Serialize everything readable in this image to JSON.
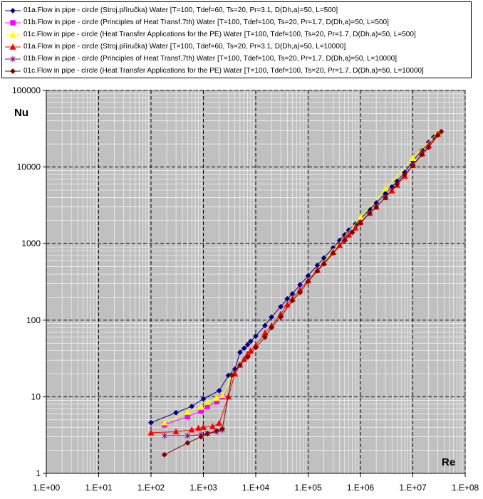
{
  "chart_data": {
    "type": "scatter",
    "title": "",
    "xlabel": "Re",
    "ylabel": "Nu",
    "xscale": "log",
    "yscale": "log",
    "xlim": [
      1,
      100000000
    ],
    "ylim": [
      1,
      100000
    ],
    "x_tick_labels": [
      "1.E+00",
      "1.E+01",
      "1.E+02",
      "1.E+03",
      "1.E+04",
      "1.E+05",
      "1.E+06",
      "1.E+07",
      "1.E+08"
    ],
    "y_tick_labels": [
      "1",
      "10",
      "100",
      "1000",
      "10000",
      "100000"
    ],
    "grid": true,
    "plot_background": "#c0c0c0",
    "legend_position": "top",
    "series": [
      {
        "name": "01a.Flow in pipe - circle (Stroj.příručka) Water  [T=100, Tdef=60, Ts=20, Pr=3.1, D(Dh,a)=50, L=500]",
        "color": "#000080",
        "marker": "diamond",
        "points": [
          [
            100,
            4.6
          ],
          [
            300,
            6.2
          ],
          [
            600,
            7.5
          ],
          [
            1000,
            9.4
          ],
          [
            2000,
            12
          ],
          [
            3000,
            19
          ],
          [
            4000,
            23
          ],
          [
            5000,
            38
          ],
          [
            6000,
            43
          ],
          [
            7000,
            48
          ],
          [
            8000,
            53
          ],
          [
            10000,
            62
          ],
          [
            15000,
            85
          ],
          [
            20000,
            110
          ],
          [
            30000,
            150
          ],
          [
            40000,
            190
          ],
          [
            50000,
            220
          ],
          [
            70000,
            290
          ],
          [
            100000,
            380
          ],
          [
            150000,
            520
          ],
          [
            200000,
            650
          ],
          [
            300000,
            880
          ],
          [
            400000,
            1100
          ],
          [
            500000,
            1300
          ],
          [
            600000,
            1500
          ],
          [
            800000,
            1800
          ],
          [
            1000000,
            2100
          ],
          [
            1500000,
            2800
          ],
          [
            2000000,
            3400
          ],
          [
            3000000,
            4500
          ],
          [
            4000000,
            5500
          ],
          [
            5000000,
            6500
          ],
          [
            7000000,
            8500
          ],
          [
            10000000,
            12000
          ],
          [
            15000000,
            16500
          ],
          [
            20000000,
            21000
          ],
          [
            25000000,
            24500
          ]
        ]
      },
      {
        "name": "01b.Flow in pipe - circle (Principles of Heat Transf.7th) Water  [T=100, Tdef=100, Ts=20, Pr=1.7, D(Dh,a)=50, L=500]",
        "color": "#ff00ff",
        "marker": "square",
        "points": [
          [
            180,
            4.3
          ],
          [
            500,
            5.5
          ],
          [
            900,
            6.5
          ],
          [
            1200,
            7.5
          ],
          [
            1800,
            8.6
          ],
          [
            2300,
            10
          ]
        ]
      },
      {
        "name": "01c.Flow in pipe - circle (Heat Transfer Applications for the PE) Water  [T=100, Tdef=100, Ts=20, Pr=1.7, D(Dh,a)=50, L=500]",
        "color": "#ffff00",
        "marker": "triangle",
        "points": [
          [
            180,
            4.6
          ],
          [
            500,
            6.3
          ],
          [
            900,
            7.3
          ],
          [
            1200,
            8.5
          ],
          [
            1800,
            9.6
          ],
          [
            2300,
            10.5
          ],
          [
            3500,
            19
          ],
          [
            5000,
            26
          ],
          [
            10000,
            47
          ],
          [
            20000,
            85
          ],
          [
            50000,
            190
          ],
          [
            100000,
            330
          ],
          [
            300000,
            800
          ],
          [
            1000000,
            2200
          ],
          [
            3000000,
            5200
          ],
          [
            10000000,
            13000
          ],
          [
            30000000,
            28000
          ]
        ]
      },
      {
        "name": "01a.Flow in pipe - circle (Stroj.příručka) Water  [T=100, Tdef=60, Ts=20, Pr=3.1, D(Dh,a)=50, L=10000]",
        "color": "#ff0000",
        "marker": "triangle",
        "points": [
          [
            100,
            3.4
          ],
          [
            300,
            3.5
          ],
          [
            600,
            3.7
          ],
          [
            800,
            3.9
          ],
          [
            1000,
            4
          ],
          [
            1500,
            4.1
          ],
          [
            2000,
            4.5
          ],
          [
            3000,
            10
          ],
          [
            4000,
            20
          ],
          [
            5000,
            26
          ],
          [
            6000,
            31
          ],
          [
            7000,
            36
          ],
          [
            8000,
            40
          ],
          [
            10000,
            47
          ],
          [
            15000,
            68
          ],
          [
            20000,
            85
          ],
          [
            30000,
            120
          ],
          [
            40000,
            160
          ],
          [
            50000,
            190
          ],
          [
            70000,
            250
          ],
          [
            100000,
            330
          ],
          [
            150000,
            450
          ],
          [
            200000,
            560
          ],
          [
            300000,
            770
          ],
          [
            400000,
            950
          ],
          [
            500000,
            1150
          ],
          [
            600000,
            1300
          ],
          [
            800000,
            1600
          ],
          [
            1000000,
            1900
          ],
          [
            1500000,
            2500
          ],
          [
            2000000,
            3000
          ],
          [
            3000000,
            4000
          ],
          [
            4000000,
            4900
          ],
          [
            5000000,
            5800
          ],
          [
            7000000,
            7600
          ],
          [
            10000000,
            10500
          ],
          [
            15000000,
            15000
          ],
          [
            20000000,
            19000
          ],
          [
            30000000,
            27000
          ]
        ]
      },
      {
        "name": "01b.Flow in pipe - circle (Principles of Heat Transf.7th) Water  [T=100, Tdef=100, Ts=20, Pr=1.7, D(Dh,a)=50, L=10000]",
        "color": "#800080",
        "marker": "star",
        "points": [
          [
            180,
            3.1
          ],
          [
            500,
            3.1
          ],
          [
            900,
            3.2
          ],
          [
            1200,
            3.3
          ],
          [
            1800,
            3.5
          ],
          [
            2300,
            3.7
          ]
        ]
      },
      {
        "name": "01c.Flow in pipe - circle (Heat Transfer Applications for the PE) Water  [T=100, Tdef=100, Ts=20, Pr=1.7, D(Dh,a)=50, L=10000]",
        "color": "#800000",
        "marker": "diamond",
        "points": [
          [
            180,
            1.75
          ],
          [
            500,
            2.5
          ],
          [
            900,
            3
          ],
          [
            1200,
            3.3
          ],
          [
            1800,
            3.6
          ],
          [
            2300,
            3.8
          ],
          [
            3500,
            19
          ],
          [
            5000,
            26
          ],
          [
            7000,
            33
          ],
          [
            10000,
            44
          ],
          [
            15000,
            60
          ],
          [
            20000,
            80
          ],
          [
            30000,
            110
          ],
          [
            50000,
            180
          ],
          [
            70000,
            230
          ],
          [
            100000,
            320
          ],
          [
            150000,
            440
          ],
          [
            200000,
            540
          ],
          [
            300000,
            750
          ],
          [
            500000,
            1100
          ],
          [
            700000,
            1400
          ],
          [
            1000000,
            1850
          ],
          [
            1500000,
            2500
          ],
          [
            2000000,
            3000
          ],
          [
            3000000,
            4000
          ],
          [
            5000000,
            6000
          ],
          [
            7000000,
            8000
          ],
          [
            10000000,
            10500
          ],
          [
            15000000,
            14500
          ],
          [
            20000000,
            18000
          ],
          [
            30000000,
            26000
          ],
          [
            35000000,
            29000
          ]
        ]
      }
    ]
  }
}
